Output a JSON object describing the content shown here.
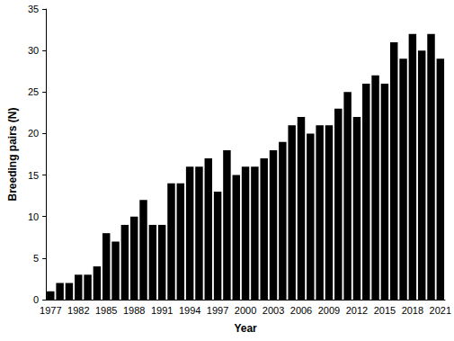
{
  "chart_data": {
    "type": "bar",
    "x_label": "Year",
    "y_label": "Breeding pairs (N)",
    "categories": [
      "1977",
      null,
      null,
      "1982",
      null,
      null,
      "1985",
      null,
      null,
      "1988",
      null,
      null,
      "1991",
      null,
      null,
      "1994",
      null,
      null,
      "1997",
      null,
      null,
      "2000",
      null,
      null,
      "2003",
      null,
      null,
      "2006",
      null,
      null,
      "2009",
      null,
      null,
      "2012",
      null,
      null,
      "2015",
      null,
      null,
      "2018",
      null,
      null,
      "2021"
    ],
    "values": [
      1,
      2,
      2,
      3,
      3,
      4,
      8,
      7,
      9,
      10,
      12,
      9,
      9,
      14,
      14,
      16,
      16,
      17,
      13,
      18,
      15,
      16,
      16,
      17,
      18,
      19,
      21,
      22,
      20,
      21,
      21,
      23,
      25,
      22,
      26,
      27,
      26,
      31,
      29,
      32,
      30,
      32,
      29
    ],
    "color": "#000000",
    "ylim": [
      0,
      35
    ],
    "yticks": [
      0,
      5,
      10,
      15,
      20,
      25,
      30,
      35
    ],
    "grid": false
  }
}
